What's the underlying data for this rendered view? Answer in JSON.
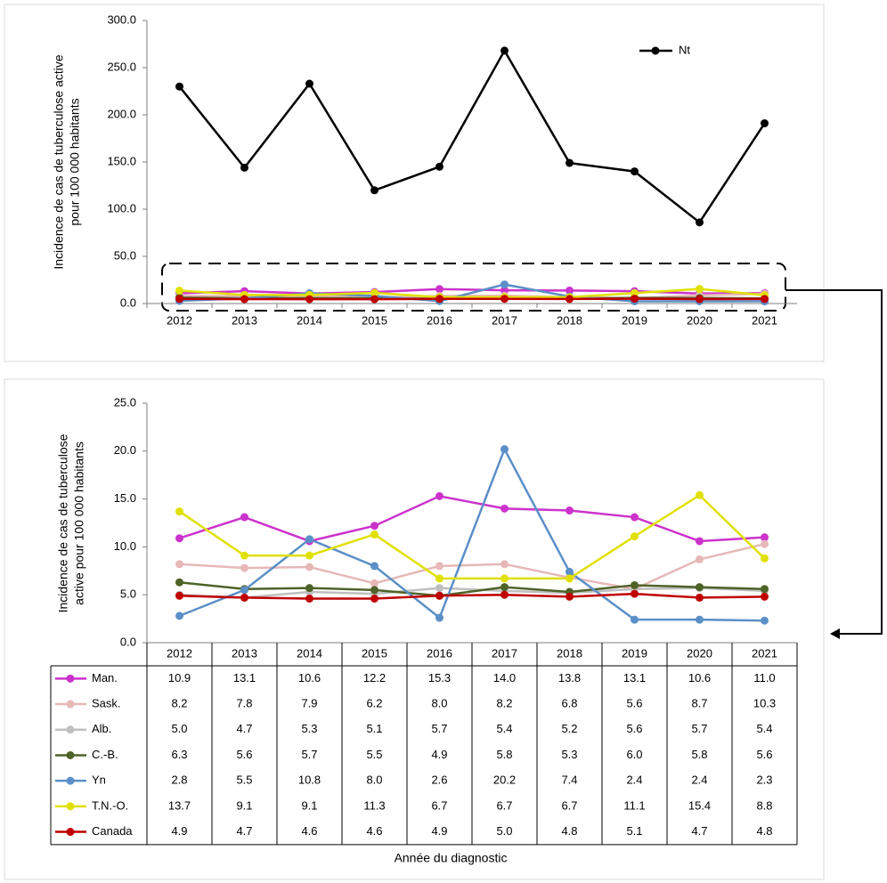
{
  "chart_data": [
    {
      "type": "line",
      "y_label": [
        "Incidence de cas de tuberculose active",
        "pour 100 000 habitants"
      ],
      "categories": [
        "2012",
        "2013",
        "2014",
        "2015",
        "2016",
        "2017",
        "2018",
        "2019",
        "2020",
        "2021"
      ],
      "series": [
        {
          "name": "Nt",
          "color": "#000000",
          "values": [
            230,
            144,
            233,
            120,
            145,
            268,
            149,
            140,
            86,
            191
          ]
        }
      ],
      "ylim": [
        0,
        300
      ],
      "yticks": [
        {
          "value": 0,
          "label": "0.0"
        },
        {
          "value": 50,
          "label": "50.0"
        },
        {
          "value": 100,
          "label": "100.0"
        },
        {
          "value": 150,
          "label": "150.0"
        },
        {
          "value": 200,
          "label": "200.0"
        },
        {
          "value": 250,
          "label": "250.0"
        },
        {
          "value": 300,
          "label": "300.0"
        }
      ],
      "legend": "upper right"
    },
    {
      "type": "line",
      "y_label": [
        "Incidence de cas de tuberculose",
        "active pour 100 000 habitants"
      ],
      "x_label": "Année du diagnostic",
      "categories": [
        "2012",
        "2013",
        "2014",
        "2015",
        "2016",
        "2017",
        "2018",
        "2019",
        "2020",
        "2021"
      ],
      "series": [
        {
          "name": "Man.",
          "color": "#cc33cc",
          "values": [
            10.9,
            13.1,
            10.6,
            12.2,
            15.3,
            14.0,
            13.8,
            13.1,
            10.6,
            11.0
          ],
          "value_labels": [
            "10.9",
            "13.1",
            "10.6",
            "12.2",
            "15.3",
            "14.0",
            "13.8",
            "13.1",
            "10.6",
            "11.0"
          ]
        },
        {
          "name": "Sask.",
          "color": "#e6b8b7",
          "values": [
            8.2,
            7.8,
            7.9,
            6.2,
            8.0,
            8.2,
            6.8,
            5.6,
            8.7,
            10.3
          ],
          "value_labels": [
            "8.2",
            "7.8",
            "7.9",
            "6.2",
            "8.0",
            "8.2",
            "6.8",
            "5.6",
            "8.7",
            "10.3"
          ]
        },
        {
          "name": "Alb.",
          "color": "#bfbfbf",
          "values": [
            5.0,
            4.7,
            5.3,
            5.1,
            5.7,
            5.4,
            5.2,
            5.6,
            5.7,
            5.4
          ],
          "value_labels": [
            "5.0",
            "4.7",
            "5.3",
            "5.1",
            "5.7",
            "5.4",
            "5.2",
            "5.6",
            "5.7",
            "5.4"
          ]
        },
        {
          "name": "C.-B.",
          "color": "#4f6228",
          "values": [
            6.3,
            5.6,
            5.7,
            5.5,
            4.9,
            5.8,
            5.3,
            6.0,
            5.8,
            5.6
          ],
          "value_labels": [
            "6.3",
            "5.6",
            "5.7",
            "5.5",
            "4.9",
            "5.8",
            "5.3",
            "6.0",
            "5.8",
            "5.6"
          ]
        },
        {
          "name": "Yn",
          "color": "#5b8fc7",
          "values": [
            2.8,
            5.5,
            10.8,
            8.0,
            2.6,
            20.2,
            7.4,
            2.4,
            2.4,
            2.3
          ],
          "value_labels": [
            "2.8",
            "5.5",
            "10.8",
            "8.0",
            "2.6",
            "20.2",
            "7.4",
            "2.4",
            "2.4",
            "2.3"
          ]
        },
        {
          "name": "T.N.-O.",
          "color": "#e0e000",
          "values": [
            13.7,
            9.1,
            9.1,
            11.3,
            6.7,
            6.7,
            6.7,
            11.1,
            15.4,
            8.8
          ],
          "value_labels": [
            "13.7",
            "9.1",
            "9.1",
            "11.3",
            "6.7",
            "6.7",
            "6.7",
            "11.1",
            "15.4",
            "8.8"
          ]
        },
        {
          "name": "Canada",
          "color": "#c00000",
          "values": [
            4.9,
            4.7,
            4.6,
            4.6,
            4.9,
            5.0,
            4.8,
            5.1,
            4.7,
            4.8
          ],
          "value_labels": [
            "4.9",
            "4.7",
            "4.6",
            "4.6",
            "4.9",
            "5.0",
            "4.8",
            "5.1",
            "4.7",
            "4.8"
          ]
        }
      ],
      "ylim": [
        0,
        25
      ],
      "yticks": [
        {
          "value": 0,
          "label": "0.0"
        },
        {
          "value": 5,
          "label": "5.0"
        },
        {
          "value": 10,
          "label": "10.0"
        },
        {
          "value": 15,
          "label": "15.0"
        },
        {
          "value": 20,
          "label": "20.0"
        },
        {
          "value": 25,
          "label": "25.0"
        }
      ],
      "data_table": true
    }
  ]
}
